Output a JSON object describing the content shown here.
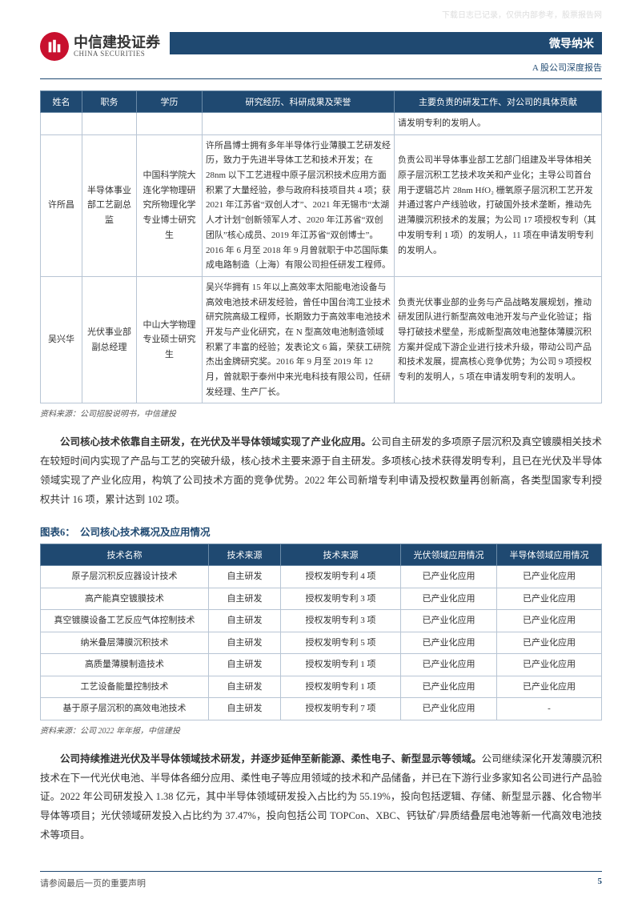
{
  "watermark": "下载日志已记录，仅供内部参考，股票报告网",
  "header": {
    "logo_cn": "中信建投证券",
    "logo_en": "CHINA SECURITIES",
    "doc_subject": "微导纳米",
    "doc_type": "A 股公司深度报告"
  },
  "people_table": {
    "headers": [
      "姓名",
      "职务",
      "学历",
      "研究经历、科研成果及荣誉",
      "主要负责的研发工作、对公司的具体贡献"
    ],
    "row0": {
      "contrib": "请发明专利的发明人。"
    },
    "rows": [
      {
        "name": "许所昌",
        "title": "半导体事业部工艺副总监",
        "edu": "中国科学院大连化学物理研究所物理化学专业博士研究生",
        "exp": "许所昌博士拥有多年半导体行业薄膜工艺研发经历，致力于先进半导体工艺和技术开发；在 28nm 以下工艺进程中原子层沉积技术应用方面积累了大量经验，参与政府科技项目共 4 项；获 2021 年江苏省“双创人才”、2021 年无锡市“太湖人才计划”创新领军人才、2020 年江苏省“双创团队”核心成员、2019 年江苏省“双创博士”。2016 年 6 月至 2018 年 9 月曾就职于中芯国际集成电路制造（上海）有限公司担任研发工程师。",
        "contrib": "负责公司半导体事业部工艺部门组建及半导体相关原子层沉积工艺技术攻关和产业化；主导公司首台用于逻辑芯片 28nm HfO₂ 栅氧原子层沉积工艺开发并通过客户产线验收，打破国外技术垄断，推动先进薄膜沉积技术的发展；为公司 17 项授权专利（其中发明专利 1 项）的发明人，11 项在申请发明专利的发明人。"
      },
      {
        "name": "吴兴华",
        "title": "光伏事业部副总经理",
        "edu": "中山大学物理专业硕士研究生",
        "exp": "吴兴华拥有 15 年以上高效率太阳能电池设备与高效电池技术研发经验，曾任中国台湾工业技术研究院高级工程师，长期致力于高效率电池技术开发与产业化研究，在 N 型高效电池制造领域积累了丰富的经验；发表论文 6 篇，荣获工研院杰出金牌研究奖。2016 年 9 月至 2019 年 12 月，曾就职于泰州中来光电科技有限公司，任研发经理、生产厂长。",
        "contrib": "负责光伏事业部的业务与产品战略发展规划，推动研发团队进行新型高效电池开发与产业化验证；指导打破技术壁垒，形成新型高效电池整体薄膜沉积方案并促成下游企业进行技术升级，带动公司产品和技术发展，提高核心竞争优势；为公司 9 项授权专利的发明人，5 项在申请发明专利的发明人。"
      }
    ],
    "source": "资料来源：公司招股说明书，中信建投"
  },
  "para1": {
    "bold": "公司核心技术依靠自主研发，在光伏及半导体领域实现了产业化应用。",
    "rest": "公司自主研发的多项原子层沉积及真空镀膜相关技术在较短时间内实现了产品与工艺的突破升级，核心技术主要来源于自主研发。多项核心技术获得发明专利，且已在光伏及半导体领域实现了产业化应用，构筑了公司技术方面的竞争优势。2022 年公司新增专利申请及授权数量再创新高，各类型国家专利授权共计 16 项，累计达到 102 项。"
  },
  "figure6": {
    "title": "图表6：　公司核心技术概况及应用情况",
    "headers": [
      "技术名称",
      "技术来源",
      "技术来源",
      "光伏领域应用情况",
      "半导体领域应用情况"
    ],
    "rows": [
      [
        "原子层沉积反应器设计技术",
        "自主研发",
        "授权发明专利 4 项",
        "已产业化应用",
        "已产业化应用"
      ],
      [
        "高产能真空镀膜技术",
        "自主研发",
        "授权发明专利 3 项",
        "已产业化应用",
        "已产业化应用"
      ],
      [
        "真空镀膜设备工艺反应气体控制技术",
        "自主研发",
        "授权发明专利 3 项",
        "已产业化应用",
        "已产业化应用"
      ],
      [
        "纳米叠层薄膜沉积技术",
        "自主研发",
        "授权发明专利 5 项",
        "已产业化应用",
        "已产业化应用"
      ],
      [
        "高质量薄膜制造技术",
        "自主研发",
        "授权发明专利 1 项",
        "已产业化应用",
        "已产业化应用"
      ],
      [
        "工艺设备能量控制技术",
        "自主研发",
        "授权发明专利 1 项",
        "已产业化应用",
        "已产业化应用"
      ],
      [
        "基于原子层沉积的高效电池技术",
        "自主研发",
        "授权发明专利 7 项",
        "已产业化应用",
        "-"
      ]
    ],
    "source": "资料来源：公司 2022 年年报，中信建投"
  },
  "para2": {
    "bold": "公司持续推进光伏及半导体领域技术研发，并逐步延伸至新能源、柔性电子、新型显示等领域。",
    "rest": "公司继续深化开发薄膜沉积技术在下一代光伏电池、半导体各细分应用、柔性电子等应用领域的技术和产品储备，并已在下游行业多家知名公司进行产品验证。2022 年公司研发投入 1.38 亿元，其中半导体领域研发投入占比约为 55.19%，投向包括逻辑、存储、新型显示器、化合物半导体等项目；光伏领域研发投入占比约为 37.47%，投向包括公司 TOPCon、XBC、钙钛矿/异质结叠层电池等新一代高效电池技术等项目。"
  },
  "footer": {
    "left": "请参阅最后一页的重要声明",
    "page": "5"
  },
  "colors": {
    "brand_blue": "#1f4971",
    "brand_red": "#c8102e",
    "border_light": "#b8c5d4"
  }
}
